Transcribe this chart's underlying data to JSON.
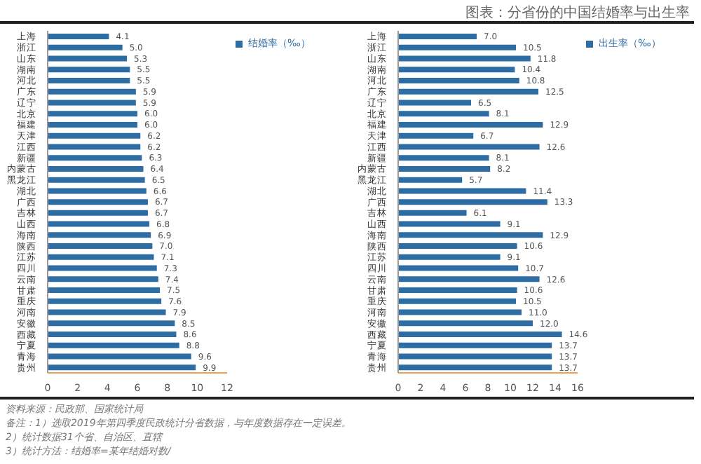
{
  "chart_data": [
    {
      "type": "bar",
      "orientation": "horizontal",
      "annotations": [
        "资料来源：民政部、国家统计局",
        "备注：1）选取2019年第四季度民政统计分省数据，与年度数据存在一定误差。",
        "2）统计数据31个省、自治区、直辖",
        "3）统计方法：结婚率=某年结婚对数/"
      ],
      "categories": [
        "上海",
        "浙江",
        "山东",
        "湖南",
        "河北",
        "广东",
        "辽宁",
        "北京",
        "福建",
        "天津",
        "江西",
        "新疆",
        "内蒙古",
        "黑龙江",
        "湖北",
        "广西",
        "吉林",
        "山西",
        "海南",
        "陕西",
        "江苏",
        "四川",
        "云南",
        "甘肃",
        "重庆",
        "河南",
        "安徽",
        "西藏",
        "宁夏",
        "青海",
        "贵州"
      ],
      "series": [
        {
          "name": "结婚率（‰）",
          "color": "#2e6da4",
          "values": [
            4.1,
            5,
            5.3,
            5.5,
            5.5,
            5.9,
            5.9,
            6,
            6,
            6.2,
            6.2,
            6.3,
            6.4,
            6.5,
            6.6,
            6.7,
            6.7,
            6.8,
            6.9,
            7,
            7.1,
            7.3,
            7.4,
            7.5,
            7.6,
            7.9,
            8.5,
            8.6,
            8.8,
            9.6,
            9.9
          ],
          "value_labels": [
            "4.1",
            "5.0",
            "5.3",
            "5.5",
            "5.5",
            "5.9",
            "5.9",
            "6.0",
            "6.0",
            "6.2",
            "6.2",
            "6.3",
            "6.4",
            "6.5",
            "6.6",
            "6.7",
            "6.7",
            "6.8",
            "6.9",
            "7.0",
            "7.1",
            "7.3",
            "7.4",
            "7.5",
            "7.6",
            "7.9",
            "8.5",
            "8.6",
            "8.8",
            "9.6",
            "9.9"
          ]
        }
      ],
      "xlim": [
        0,
        12
      ],
      "xticks": [
        0,
        2,
        4,
        6,
        8,
        10,
        12
      ],
      "legend": "top right"
    },
    {
      "type": "bar",
      "orientation": "horizontal",
      "title": "图表：分省份的中国结婚率与出生率",
      "categories": [
        "上海",
        "浙江",
        "山东",
        "湖南",
        "河北",
        "广东",
        "辽宁",
        "北京",
        "福建",
        "天津",
        "江西",
        "新疆",
        "内蒙古",
        "黑龙江",
        "湖北",
        "广西",
        "吉林",
        "山西",
        "海南",
        "陕西",
        "江苏",
        "四川",
        "云南",
        "甘肃",
        "重庆",
        "河南",
        "安徽",
        "西藏",
        "宁夏",
        "青海",
        "贵州"
      ],
      "series": [
        {
          "name": "出生率（‰）",
          "color": "#2e6da4",
          "values": [
            7,
            10.5,
            11.8,
            10.4,
            10.8,
            12.5,
            6.5,
            8.1,
            12.9,
            6.7,
            12.6,
            8.1,
            8.2,
            5.7,
            11.4,
            13.3,
            6.1,
            9.1,
            12.9,
            10.6,
            9.1,
            10.7,
            12.6,
            10.6,
            10.5,
            11,
            12,
            14.6,
            13.7,
            13.7,
            13.7
          ],
          "value_labels": [
            "7.0",
            "10.5",
            "11.8",
            "10.4",
            "10.8",
            "12.5",
            "6.5",
            "8.1",
            "12.9",
            "6.7",
            "12.6",
            "8.1",
            "8.2",
            "5.7",
            "11.4",
            "13.3",
            "6.1",
            "9.1",
            "12.9",
            "10.6",
            "9.1",
            "10.7",
            "12.6",
            "10.6",
            "10.5",
            "11.0",
            "12.0",
            "14.6",
            "13.7",
            "13.7",
            "13.7"
          ]
        }
      ],
      "xlim": [
        0,
        16
      ],
      "xticks": [
        0,
        2,
        4,
        6,
        8,
        10,
        12,
        14,
        16
      ],
      "legend": "top right"
    }
  ]
}
